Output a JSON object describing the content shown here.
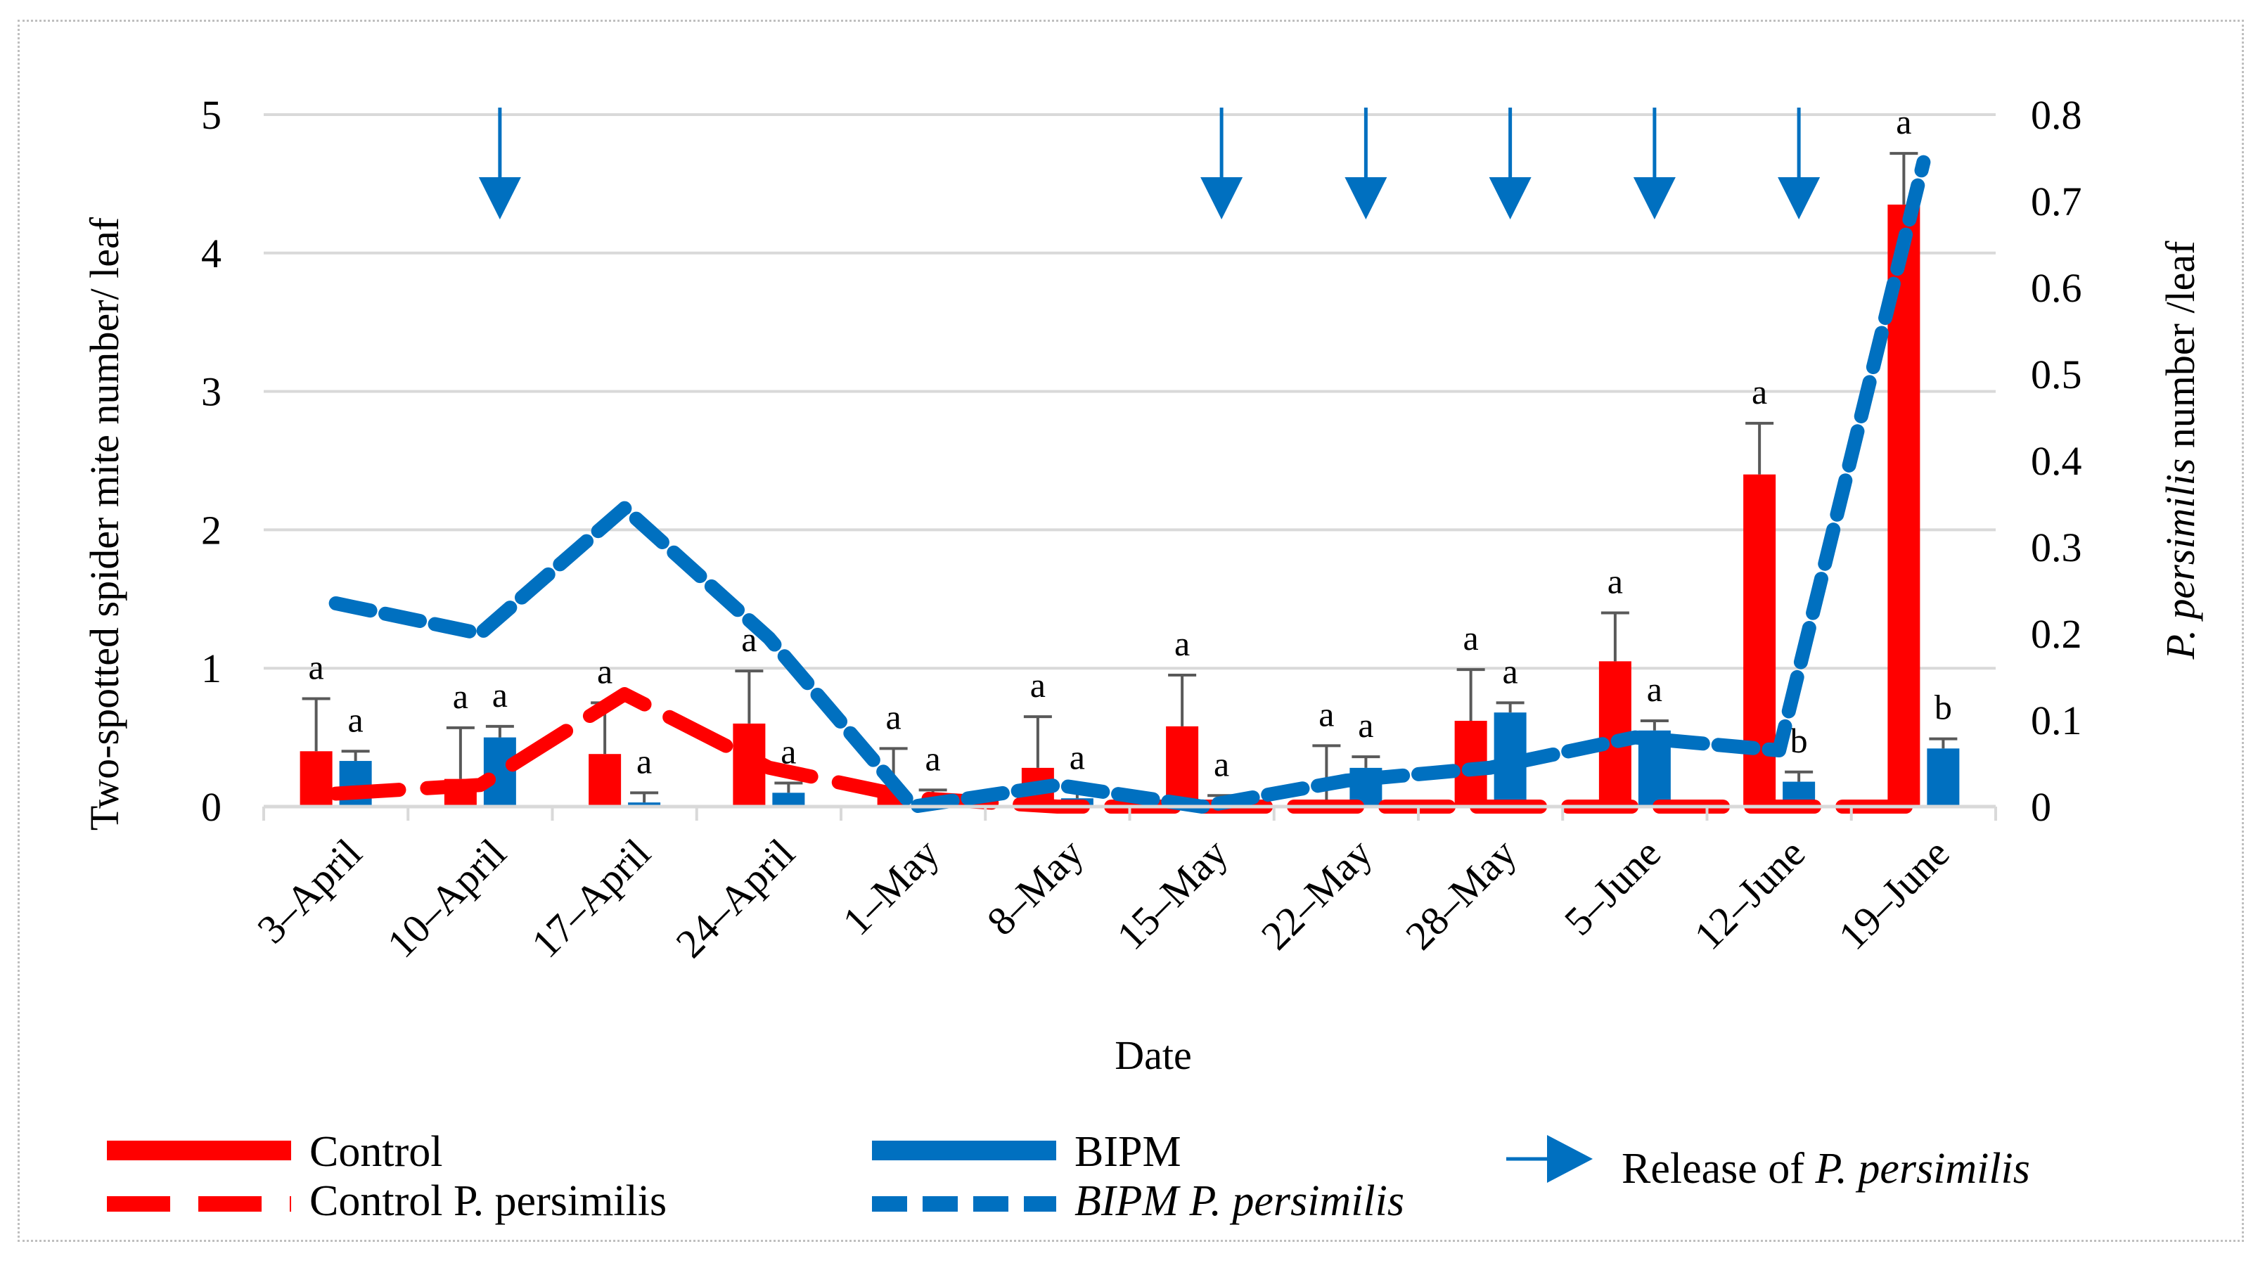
{
  "chart_data": {
    "type": "bar",
    "xlabel": "Date",
    "ylabel_left": "Two-spotted spider mite number/ leaf",
    "ylabel_right_italic": "P. persimilis",
    "ylabel_right_rest": " number  /leaf",
    "y_left_range": [
      0,
      5
    ],
    "y_left_ticks": [
      "0",
      "1",
      "2",
      "3",
      "4",
      "5"
    ],
    "y_right_range": [
      0,
      0.8
    ],
    "y_right_ticks": [
      "0",
      "0.1",
      "0.2",
      "0.3",
      "0.4",
      "0.5",
      "0.6",
      "0.7",
      "0.8"
    ],
    "categories": [
      "3–April",
      "10–April",
      "17–April",
      "24–April",
      "1–May",
      "8–May",
      "15–May",
      "22–May",
      "28–May",
      "5–June",
      "12–June",
      "19–June"
    ],
    "series": [
      {
        "name": "Control",
        "kind": "bar",
        "axis": "left",
        "color": "#ff0000",
        "values": [
          0.4,
          0.2,
          0.38,
          0.6,
          0.07,
          0.28,
          0.58,
          0.04,
          0.62,
          1.05,
          2.4,
          4.35
        ],
        "errors": [
          0.38,
          0.37,
          0.37,
          0.38,
          0.35,
          0.37,
          0.37,
          0.4,
          0.37,
          0.35,
          0.37,
          0.37
        ],
        "letters": [
          "a",
          "a",
          "a",
          "a",
          "a",
          "a",
          "a",
          "a",
          "a",
          "a",
          "a",
          "a"
        ]
      },
      {
        "name": "BIPM",
        "kind": "bar",
        "axis": "left",
        "color": "#0070c0",
        "values": [
          0.33,
          0.5,
          0.03,
          0.1,
          0.05,
          0.06,
          0.03,
          0.28,
          0.68,
          0.55,
          0.18,
          0.42
        ],
        "errors": [
          0.07,
          0.08,
          0.07,
          0.07,
          0.07,
          0.07,
          0.05,
          0.08,
          0.07,
          0.07,
          0.07,
          0.07
        ],
        "letters": [
          "a",
          "a",
          "a",
          "a",
          "a",
          "a",
          "a",
          "a",
          "a",
          "a",
          "b",
          "b"
        ]
      },
      {
        "name": "Control P. persimilis",
        "kind": "dashed-line",
        "axis": "right",
        "color": "#ff0000",
        "values": [
          0.015,
          0.025,
          0.13,
          0.045,
          0.01,
          0.0,
          0.0,
          0.0,
          0.0,
          0.0,
          0.0,
          0.0
        ]
      },
      {
        "name": "BIPM P. persimilis",
        "kind": "dashed-line",
        "axis": "right",
        "color": "#0070c0",
        "values": [
          0.235,
          0.2,
          0.345,
          0.195,
          0.0,
          0.025,
          0.0,
          0.03,
          0.045,
          0.08,
          0.065,
          0.745
        ]
      }
    ],
    "release_dates": [
      "10–April",
      "15–May",
      "22–May",
      "28–May",
      "5–June",
      "12–June"
    ],
    "legend": {
      "control": "Control",
      "bipm": "BIPM",
      "control_pp": "Control P. persimilis",
      "bipm_pp": "BIPM P. persimilis",
      "release_prefix": "Release of ",
      "release_italic": "P. persimilis"
    },
    "grid": true
  }
}
